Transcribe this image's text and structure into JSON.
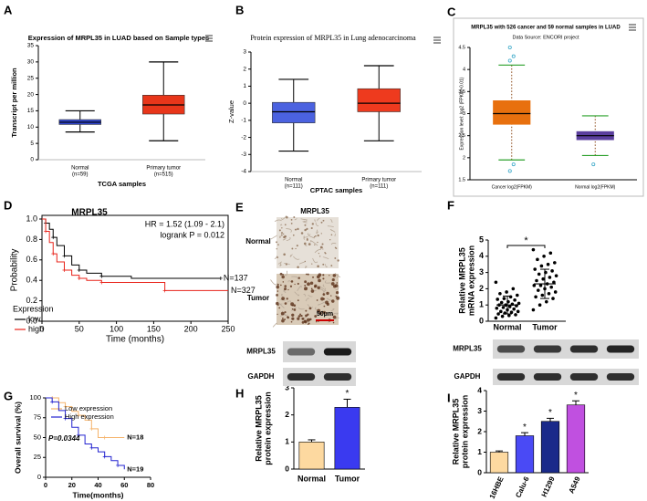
{
  "chart_data": [
    {
      "panel": "A",
      "type": "box",
      "title": "Expression of MRPL35 in LUAD based on Sample types",
      "ylabel": "Transcript per million",
      "xlabel": "TCGA samples",
      "categories": [
        "Normal",
        "Primary tumor"
      ],
      "category_counts": [
        "(n=59)",
        "(n=515)"
      ],
      "colors": [
        "#2f45d0",
        "#e8361a"
      ],
      "boxes": [
        {
          "min": 8.5,
          "q1": 10.8,
          "median": 11.5,
          "q3": 12.3,
          "max": 15
        },
        {
          "min": 5.8,
          "q1": 14,
          "median": 16.8,
          "q3": 19.8,
          "max": 30
        }
      ],
      "ylim": [
        0,
        35
      ],
      "yticks": [
        0,
        5,
        10,
        15,
        20,
        25,
        30,
        35
      ]
    },
    {
      "panel": "B",
      "type": "box",
      "title": "Protein expression of MRPL35 in Lung adenocarcinoma",
      "ylabel": "Z-value",
      "xlabel": "CPTAC samples",
      "categories": [
        "Normal",
        "Primary tumor"
      ],
      "category_counts": [
        "(n=111)",
        "(n=111)"
      ],
      "colors": [
        "#4b62e0",
        "#ee3a1e"
      ],
      "boxes": [
        {
          "min": -2.8,
          "q1": -1.15,
          "median": -0.5,
          "q3": 0.05,
          "max": 1.4
        },
        {
          "min": -2.2,
          "q1": -0.5,
          "median": 0,
          "q3": 0.85,
          "max": 2.2
        }
      ],
      "ylim": [
        -4,
        3
      ],
      "yticks": [
        -4,
        -3,
        -2,
        -1,
        0,
        1,
        2,
        3
      ]
    },
    {
      "panel": "C",
      "type": "box",
      "title": "MRPL35 with 526 cancer and 59 normal samples in LUAD",
      "subtitle": "Data Source: ENCORI project",
      "ylabel": "Expression level: log2 (FPKM+0.01)",
      "categories": [
        "Cancer log2(FPKM)",
        "Normal log2(FPKM)"
      ],
      "colors": [
        "#e8700e",
        "#5b3f9e"
      ],
      "boxes": [
        {
          "min": 1.95,
          "q1": 2.75,
          "median": 3.0,
          "q3": 3.3,
          "max": 4.1
        },
        {
          "min": 2.05,
          "q1": 2.4,
          "median": 2.5,
          "q3": 2.6,
          "max": 2.95
        }
      ],
      "outliers": [
        [
          4.2,
          4.3,
          4.5,
          1.85,
          1.7
        ],
        [
          1.85
        ]
      ],
      "ylim": [
        1.5,
        4.5
      ],
      "yticks": [
        1.5,
        2,
        2.5,
        3,
        3.5,
        4,
        4.5
      ]
    },
    {
      "panel": "D",
      "type": "km",
      "title": "MRPL35",
      "ylabel": "Probability",
      "xlabel": "Time (months)",
      "legend_title": "Expression",
      "annotations": [
        "HR = 1.52 (1.09 - 2.1)",
        "logrank P = 0.012"
      ],
      "series": [
        {
          "name": "low",
          "color": "#000000",
          "end_label": "N=137",
          "x": [
            0,
            5,
            10,
            15,
            20,
            30,
            40,
            50,
            60,
            80,
            120,
            240
          ],
          "values": [
            1,
            0.96,
            0.9,
            0.82,
            0.74,
            0.64,
            0.55,
            0.5,
            0.47,
            0.44,
            0.42,
            0.42
          ]
        },
        {
          "name": "high",
          "color": "#e8231a",
          "end_label": "N=327",
          "x": [
            0,
            5,
            10,
            15,
            20,
            30,
            40,
            50,
            60,
            80,
            100,
            165,
            250
          ],
          "values": [
            1,
            0.88,
            0.77,
            0.66,
            0.58,
            0.5,
            0.45,
            0.42,
            0.4,
            0.38,
            0.38,
            0.3,
            0.3
          ]
        }
      ],
      "xlim": [
        0,
        250
      ],
      "xticks": [
        0,
        50,
        100,
        150,
        200,
        250
      ],
      "ylim": [
        0,
        1
      ],
      "yticks": [
        {
          "value": 0,
          "label": "0.0"
        },
        0.2,
        0.4,
        0.6,
        0.8,
        {
          "value": 1,
          "label": "1.0"
        }
      ]
    },
    {
      "panel": "E",
      "type": "image",
      "title": "MRPL35",
      "row_labels": [
        "Normal",
        "Tumor"
      ],
      "scale_bar": "50μm"
    },
    {
      "panel": "F",
      "type": "dot",
      "ylabel": [
        "Relative MRPL35",
        "mRNA expression"
      ],
      "categories": [
        "Normal",
        "Tumor"
      ],
      "significance": "*",
      "values": [
        [
          0.2,
          0.3,
          0.35,
          0.4,
          0.45,
          0.5,
          0.55,
          0.6,
          0.6,
          0.7,
          0.75,
          0.8,
          0.85,
          0.9,
          0.95,
          1.0,
          1.0,
          1.05,
          1.1,
          1.15,
          1.2,
          1.3,
          1.35,
          1.4,
          1.5,
          1.6,
          1.7,
          1.8,
          2.0,
          2.4
        ],
        [
          0.7,
          1.0,
          1.2,
          1.4,
          1.5,
          1.6,
          1.7,
          1.8,
          1.9,
          2.0,
          2.1,
          2.2,
          2.2,
          2.3,
          2.4,
          2.5,
          2.6,
          2.7,
          2.8,
          2.9,
          3.0,
          3.1,
          3.2,
          3.4,
          3.5,
          3.6,
          3.8,
          4.0,
          4.2,
          4.4
        ]
      ],
      "means": [
        1.0,
        2.3
      ],
      "sd": [
        0.55,
        0.9
      ],
      "ylim": [
        0,
        5
      ],
      "yticks": [
        0,
        1,
        2,
        3,
        4,
        5
      ]
    },
    {
      "panel": "G",
      "type": "km",
      "ylabel": "Overall survival (%)",
      "xlabel": "Time(months)",
      "annotations": [
        "P=0.0344"
      ],
      "series": [
        {
          "name": "Low expression",
          "color": "#f5b36a",
          "end_label": "N=18",
          "x": [
            0,
            5,
            10,
            15,
            20,
            25,
            30,
            35,
            40,
            45,
            60
          ],
          "values": [
            100,
            100,
            94,
            89,
            83,
            78,
            72,
            61,
            50,
            50,
            50
          ]
        },
        {
          "name": "High expression",
          "color": "#2323d0",
          "end_label": "N=19",
          "x": [
            0,
            5,
            10,
            15,
            20,
            25,
            30,
            35,
            40,
            45,
            50,
            55,
            60
          ],
          "values": [
            100,
            95,
            84,
            74,
            63,
            53,
            42,
            37,
            32,
            26,
            21,
            15,
            10
          ]
        }
      ],
      "xlim": [
        0,
        80
      ],
      "xticks": [
        0,
        20,
        40,
        60,
        80
      ],
      "ylim": [
        0,
        100
      ],
      "yticks": [
        0,
        25,
        50,
        75,
        100
      ]
    },
    {
      "panel": "H",
      "type": "errbar",
      "ylabel": [
        "Relative MRPL35",
        "protein expression"
      ],
      "blot_labels": [
        "MRPL35",
        "GAPDH"
      ],
      "categories": [
        "Normal",
        "Tumor"
      ],
      "values": [
        1.0,
        2.28
      ],
      "errors": [
        0.08,
        0.3
      ],
      "colors": [
        "#fdd9a0",
        "#3a3af0"
      ],
      "significance": [
        null,
        "*"
      ],
      "ylim": [
        0,
        3
      ],
      "yticks": [
        0,
        1,
        2,
        3
      ]
    },
    {
      "panel": "I",
      "type": "errbar",
      "ylabel": [
        "Relative MRPL35",
        "protein expression"
      ],
      "blot_labels": [
        "MRPL35",
        "GAPDH"
      ],
      "categories": [
        "16HBE",
        "Calu-6",
        "H1299",
        "A549"
      ],
      "values": [
        1.0,
        1.8,
        2.5,
        3.3
      ],
      "errors": [
        0.06,
        0.15,
        0.15,
        0.2
      ],
      "colors": [
        "#fdd9a0",
        "#4a4af5",
        "#1a2a8a",
        "#c050e0"
      ],
      "significance": [
        null,
        "*",
        "*",
        "*"
      ],
      "ylim": [
        0,
        4
      ],
      "yticks": [
        0,
        1,
        2,
        3,
        4
      ]
    }
  ]
}
